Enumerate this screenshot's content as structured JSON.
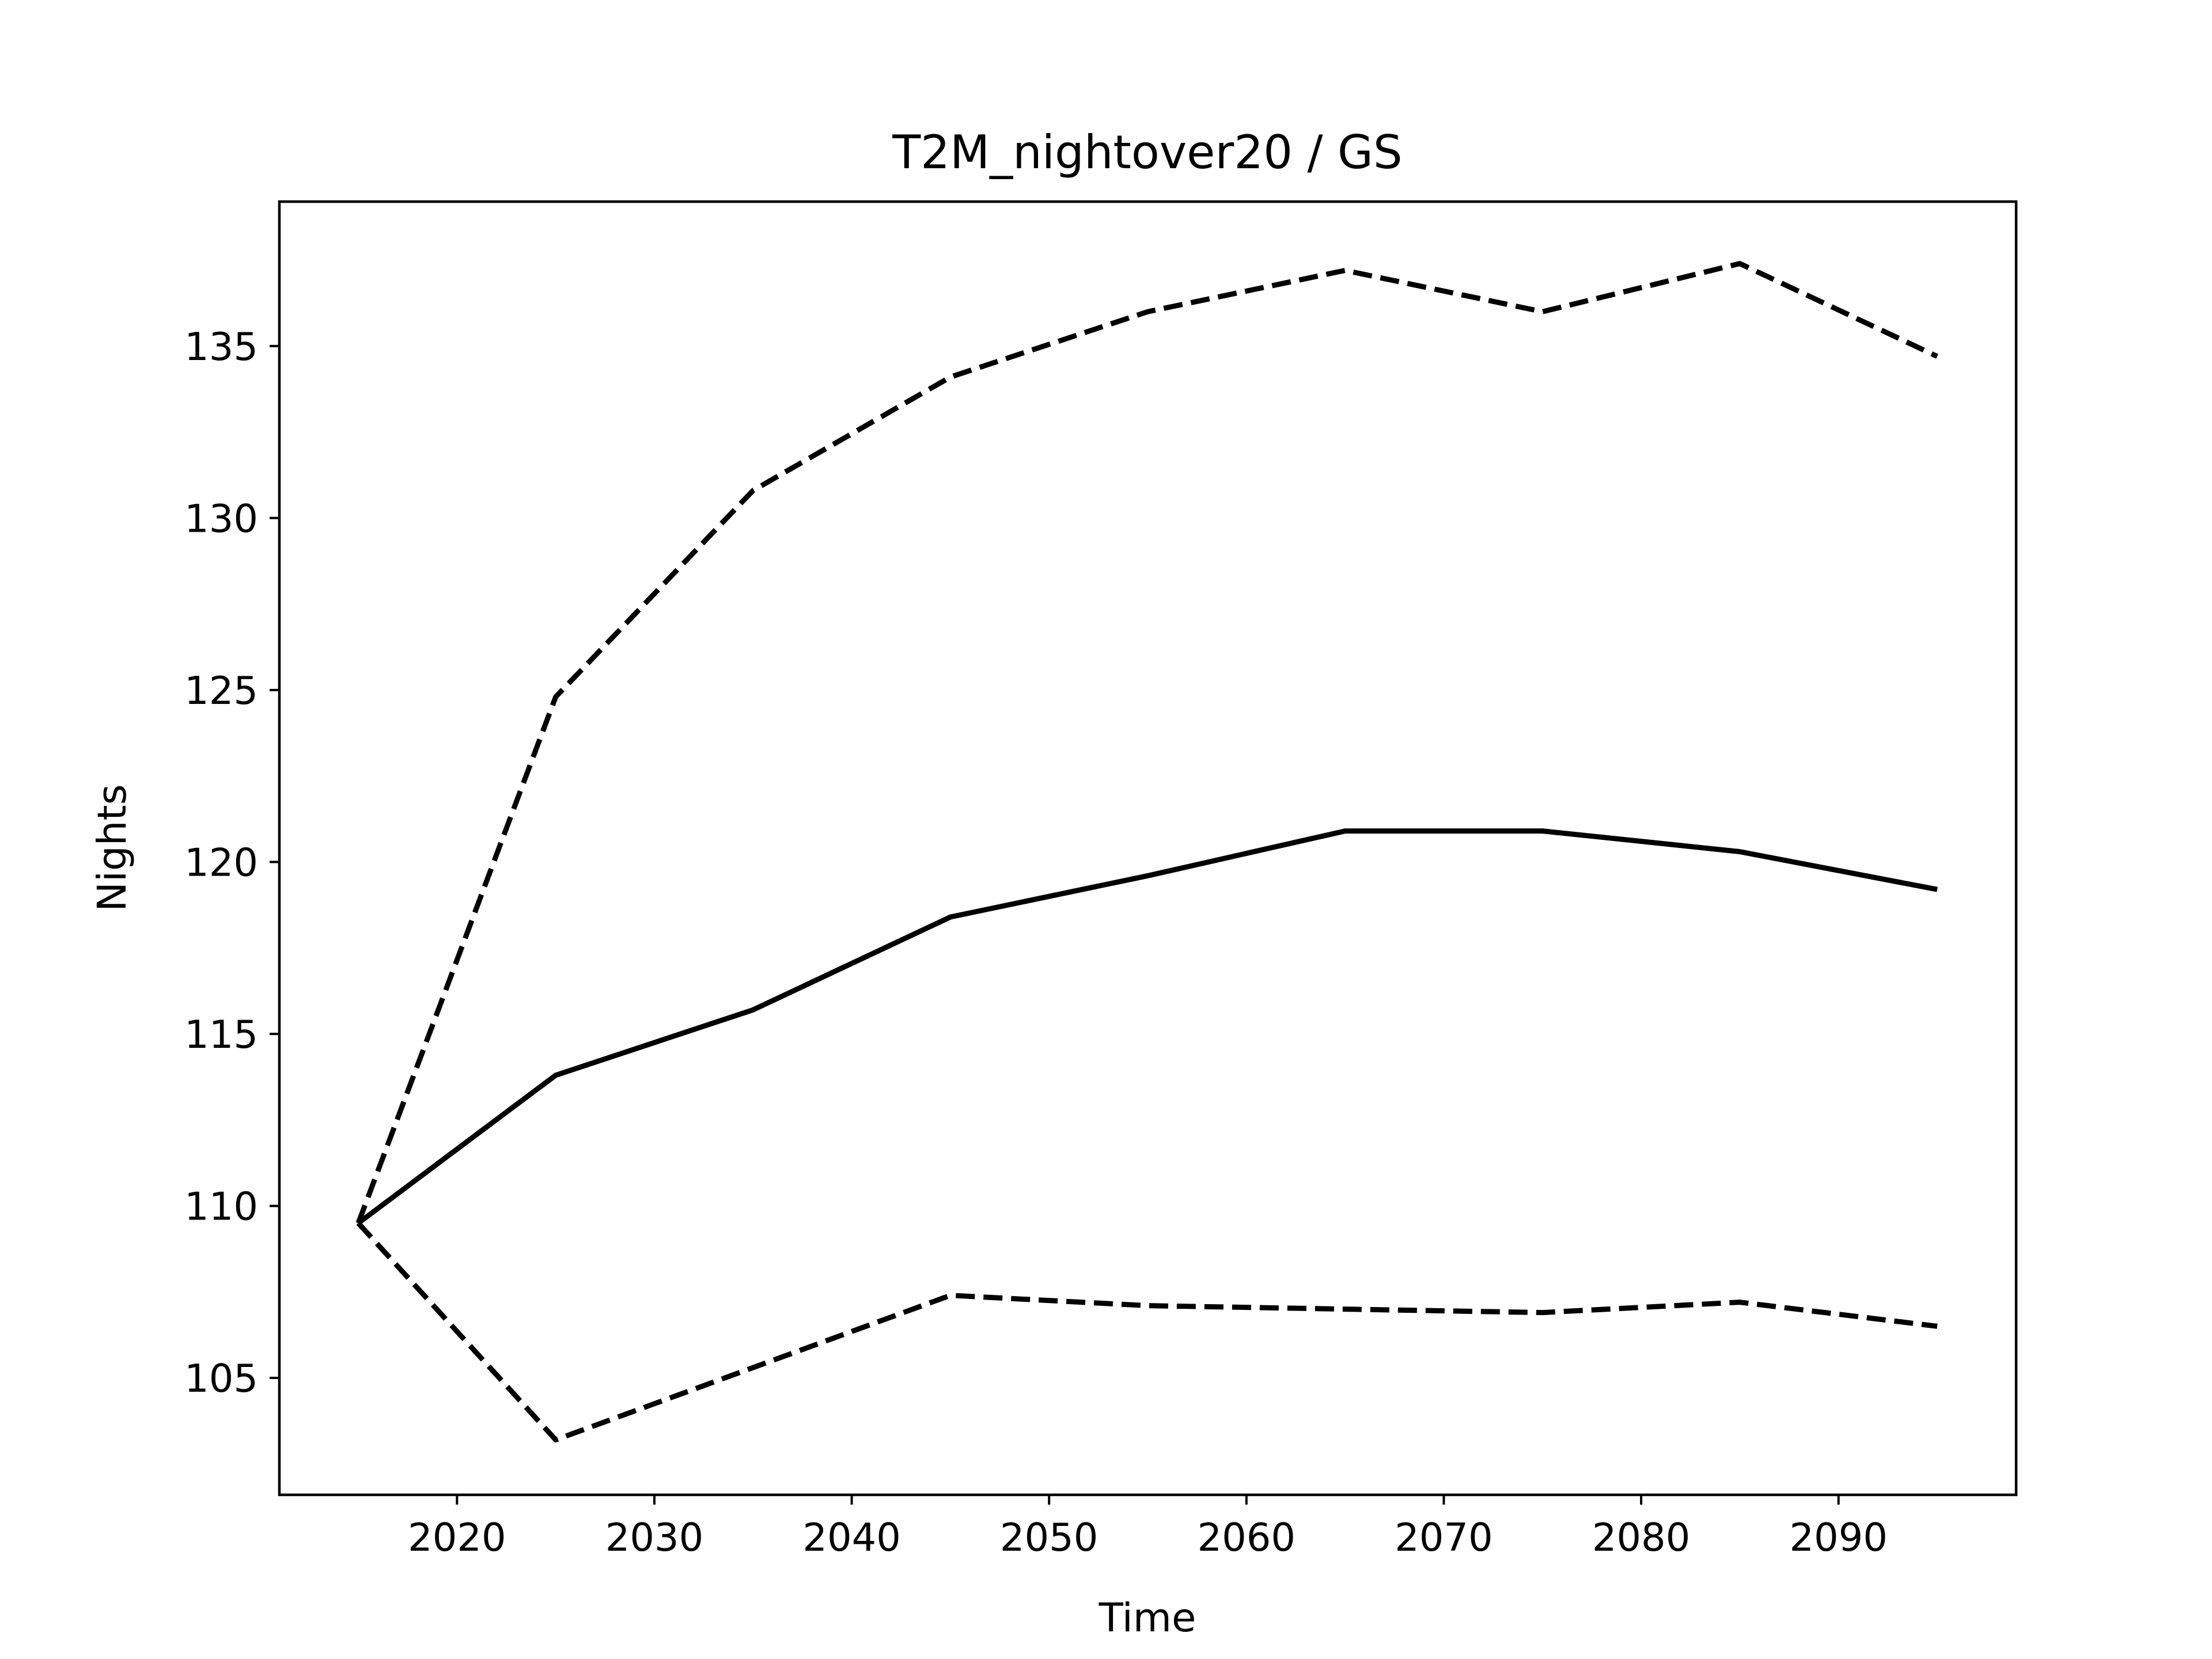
{
  "chart_data": {
    "type": "line",
    "title": "T2M_nightover20 / GS",
    "xlabel": "Time",
    "ylabel": "Nights",
    "xlim": [
      2011,
      2099
    ],
    "ylim": [
      101.6,
      139.2
    ],
    "xticks": [
      2020,
      2030,
      2040,
      2050,
      2060,
      2070,
      2080,
      2090
    ],
    "yticks": [
      105,
      110,
      115,
      120,
      125,
      130,
      135
    ],
    "grid": false,
    "legend": false,
    "x": [
      2015,
      2025,
      2035,
      2045,
      2055,
      2065,
      2075,
      2085,
      2095
    ],
    "series": [
      {
        "style": "solid",
        "color": "#000000",
        "values": [
          109.5,
          113.8,
          115.7,
          118.4,
          119.6,
          120.9,
          120.9,
          120.3,
          119.2
        ]
      },
      {
        "style": "dashed",
        "color": "#000000",
        "values": [
          109.5,
          124.8,
          130.8,
          134.1,
          136.0,
          137.2,
          136.0,
          137.4,
          134.7
        ]
      },
      {
        "style": "dashed",
        "color": "#000000",
        "values": [
          109.5,
          103.2,
          105.3,
          107.4,
          107.1,
          107.0,
          106.9,
          107.2,
          106.5
        ]
      }
    ]
  }
}
